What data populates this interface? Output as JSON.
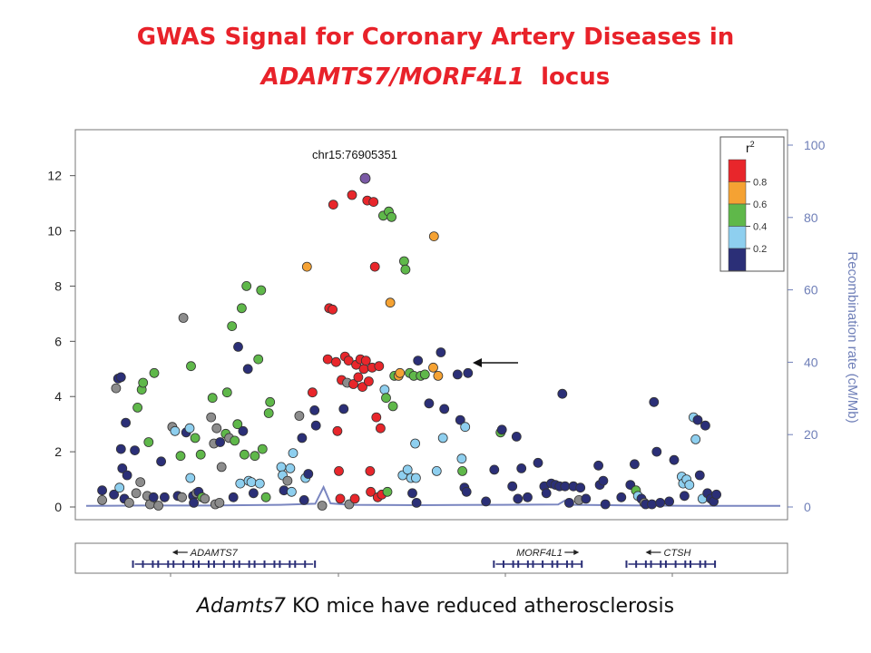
{
  "title": {
    "line1": "GWAS Signal for Coronary Artery Diseases in",
    "line2_italic": "ADAMTS7/MORF4L1",
    "line2_rest": "locus"
  },
  "caption": {
    "italic": "Adamts7",
    "rest": "KO mice have reduced atherosclerosis"
  },
  "chart_data": {
    "type": "scatter",
    "annotation": "chr15:76905351",
    "x_range": [
      0,
      1000
    ],
    "ylim": [
      0,
      13.5
    ],
    "y_ticks": [
      0,
      2,
      4,
      6,
      8,
      10,
      12
    ],
    "y2_label": "Recombination rate (cM/Mb)",
    "y2_range": [
      0,
      100
    ],
    "y2_ticks": [
      0,
      20,
      40,
      60,
      80,
      100
    ],
    "legend": {
      "title": "r",
      "title_sup": "2",
      "placement": "top-right",
      "bins": [
        {
          "color": "#e8262b",
          "label": "0.8"
        },
        {
          "color": "#f5a233",
          "label": "0.6"
        },
        {
          "color": "#5fb84a",
          "label": "0.4"
        },
        {
          "color": "#8ecfef",
          "label": "0.2"
        },
        {
          "color": "#2b2f77",
          "label": ""
        }
      ]
    },
    "colors": {
      "red": "#e8262b",
      "orange": "#f5a233",
      "green": "#5fb84a",
      "light_blue": "#8ecfef",
      "navy": "#2b2f77",
      "grey": "#8c8c8c",
      "purple": "#7b5aa6",
      "recombination_line": "#7a86c0",
      "axis_right": "#6f7fb8"
    },
    "lead_snp": {
      "x": 402,
      "y": 11.9,
      "color": "purple"
    },
    "points": [
      {
        "x": 23,
        "y": 0.6,
        "c": "navy"
      },
      {
        "x": 23,
        "y": 0.25,
        "c": "grey"
      },
      {
        "x": 40,
        "y": 0.45,
        "c": "navy"
      },
      {
        "x": 43,
        "y": 4.3,
        "c": "grey"
      },
      {
        "x": 46,
        "y": 4.65,
        "c": "navy"
      },
      {
        "x": 50,
        "y": 4.7,
        "c": "navy"
      },
      {
        "x": 48,
        "y": 0.7,
        "c": "light_blue"
      },
      {
        "x": 50,
        "y": 2.1,
        "c": "navy"
      },
      {
        "x": 52,
        "y": 1.4,
        "c": "navy"
      },
      {
        "x": 55,
        "y": 0.3,
        "c": "navy"
      },
      {
        "x": 57,
        "y": 3.05,
        "c": "navy"
      },
      {
        "x": 59,
        "y": 1.15,
        "c": "navy"
      },
      {
        "x": 62,
        "y": 0.15,
        "c": "grey"
      },
      {
        "x": 70,
        "y": 2.05,
        "c": "navy"
      },
      {
        "x": 72,
        "y": 0.5,
        "c": "grey"
      },
      {
        "x": 74,
        "y": 3.6,
        "c": "green"
      },
      {
        "x": 78,
        "y": 0.9,
        "c": "grey"
      },
      {
        "x": 80,
        "y": 4.25,
        "c": "green"
      },
      {
        "x": 82,
        "y": 4.5,
        "c": "green"
      },
      {
        "x": 88,
        "y": 0.4,
        "c": "grey"
      },
      {
        "x": 90,
        "y": 2.35,
        "c": "green"
      },
      {
        "x": 92,
        "y": 0.1,
        "c": "grey"
      },
      {
        "x": 97,
        "y": 0.35,
        "c": "navy"
      },
      {
        "x": 98,
        "y": 4.85,
        "c": "green"
      },
      {
        "x": 104,
        "y": 0.05,
        "c": "grey"
      },
      {
        "x": 108,
        "y": 1.65,
        "c": "navy"
      },
      {
        "x": 113,
        "y": 0.35,
        "c": "navy"
      },
      {
        "x": 124,
        "y": 2.9,
        "c": "grey"
      },
      {
        "x": 128,
        "y": 2.75,
        "c": "light_blue"
      },
      {
        "x": 132,
        "y": 0.4,
        "c": "navy"
      },
      {
        "x": 136,
        "y": 1.85,
        "c": "green"
      },
      {
        "x": 138,
        "y": 0.35,
        "c": "grey"
      },
      {
        "x": 140,
        "y": 6.85,
        "c": "grey"
      },
      {
        "x": 144,
        "y": 2.7,
        "c": "navy"
      },
      {
        "x": 149,
        "y": 2.85,
        "c": "light_blue"
      },
      {
        "x": 150,
        "y": 1.05,
        "c": "light_blue"
      },
      {
        "x": 151,
        "y": 5.1,
        "c": "green"
      },
      {
        "x": 154,
        "y": 0.4,
        "c": "navy"
      },
      {
        "x": 155,
        "y": 0.15,
        "c": "navy"
      },
      {
        "x": 157,
        "y": 2.5,
        "c": "green"
      },
      {
        "x": 159,
        "y": 0.5,
        "c": "grey"
      },
      {
        "x": 162,
        "y": 0.55,
        "c": "navy"
      },
      {
        "x": 165,
        "y": 1.9,
        "c": "green"
      },
      {
        "x": 167,
        "y": 0.35,
        "c": "green"
      },
      {
        "x": 171,
        "y": 0.3,
        "c": "grey"
      },
      {
        "x": 180,
        "y": 3.25,
        "c": "grey"
      },
      {
        "x": 182,
        "y": 3.95,
        "c": "green"
      },
      {
        "x": 184,
        "y": 2.3,
        "c": "grey"
      },
      {
        "x": 186,
        "y": 0.1,
        "c": "grey"
      },
      {
        "x": 188,
        "y": 2.85,
        "c": "grey"
      },
      {
        "x": 192,
        "y": 0.15,
        "c": "grey"
      },
      {
        "x": 193,
        "y": 2.35,
        "c": "navy"
      },
      {
        "x": 195,
        "y": 1.45,
        "c": "grey"
      },
      {
        "x": 201,
        "y": 2.65,
        "c": "green"
      },
      {
        "x": 203,
        "y": 4.15,
        "c": "green"
      },
      {
        "x": 206,
        "y": 2.5,
        "c": "grey"
      },
      {
        "x": 210,
        "y": 6.55,
        "c": "green"
      },
      {
        "x": 212,
        "y": 0.35,
        "c": "navy"
      },
      {
        "x": 214,
        "y": 2.4,
        "c": "green"
      },
      {
        "x": 218,
        "y": 3.0,
        "c": "green"
      },
      {
        "x": 219,
        "y": 5.8,
        "c": "navy"
      },
      {
        "x": 222,
        "y": 0.85,
        "c": "light_blue"
      },
      {
        "x": 224,
        "y": 7.2,
        "c": "green"
      },
      {
        "x": 226,
        "y": 2.75,
        "c": "navy"
      },
      {
        "x": 228,
        "y": 1.9,
        "c": "green"
      },
      {
        "x": 231,
        "y": 8.0,
        "c": "green"
      },
      {
        "x": 233,
        "y": 5.0,
        "c": "navy"
      },
      {
        "x": 234,
        "y": 0.95,
        "c": "light_blue"
      },
      {
        "x": 238,
        "y": 0.9,
        "c": "light_blue"
      },
      {
        "x": 241,
        "y": 0.5,
        "c": "navy"
      },
      {
        "x": 243,
        "y": 1.85,
        "c": "green"
      },
      {
        "x": 248,
        "y": 5.35,
        "c": "green"
      },
      {
        "x": 250,
        "y": 0.85,
        "c": "light_blue"
      },
      {
        "x": 252,
        "y": 7.85,
        "c": "green"
      },
      {
        "x": 254,
        "y": 2.1,
        "c": "green"
      },
      {
        "x": 259,
        "y": 0.35,
        "c": "green"
      },
      {
        "x": 263,
        "y": 3.4,
        "c": "green"
      },
      {
        "x": 265,
        "y": 3.8,
        "c": "green"
      },
      {
        "x": 281,
        "y": 1.45,
        "c": "light_blue"
      },
      {
        "x": 283,
        "y": 1.15,
        "c": "light_blue"
      },
      {
        "x": 285,
        "y": 0.6,
        "c": "navy"
      },
      {
        "x": 290,
        "y": 0.95,
        "c": "grey"
      },
      {
        "x": 294,
        "y": 1.4,
        "c": "light_blue"
      },
      {
        "x": 296,
        "y": 0.55,
        "c": "light_blue"
      },
      {
        "x": 298,
        "y": 1.95,
        "c": "light_blue"
      },
      {
        "x": 307,
        "y": 3.3,
        "c": "grey"
      },
      {
        "x": 311,
        "y": 2.5,
        "c": "navy"
      },
      {
        "x": 314,
        "y": 0.25,
        "c": "navy"
      },
      {
        "x": 316,
        "y": 1.05,
        "c": "light_blue"
      },
      {
        "x": 318,
        "y": 8.7,
        "c": "orange"
      },
      {
        "x": 320,
        "y": 1.2,
        "c": "navy"
      },
      {
        "x": 326,
        "y": 4.15,
        "c": "red"
      },
      {
        "x": 329,
        "y": 3.5,
        "c": "navy"
      },
      {
        "x": 331,
        "y": 2.95,
        "c": "navy"
      },
      {
        "x": 340,
        "y": 0.05,
        "c": "grey"
      },
      {
        "x": 348,
        "y": 5.35,
        "c": "red"
      },
      {
        "x": 350,
        "y": 7.2,
        "c": "red"
      },
      {
        "x": 355,
        "y": 7.15,
        "c": "red"
      },
      {
        "x": 356,
        "y": 10.95,
        "c": "red"
      },
      {
        "x": 360,
        "y": 5.25,
        "c": "red"
      },
      {
        "x": 362,
        "y": 2.75,
        "c": "red"
      },
      {
        "x": 364,
        "y": 1.3,
        "c": "red"
      },
      {
        "x": 366,
        "y": 0.3,
        "c": "red"
      },
      {
        "x": 368,
        "y": 4.6,
        "c": "red"
      },
      {
        "x": 371,
        "y": 3.55,
        "c": "navy"
      },
      {
        "x": 373,
        "y": 5.45,
        "c": "red"
      },
      {
        "x": 376,
        "y": 4.5,
        "c": "grey"
      },
      {
        "x": 378,
        "y": 5.3,
        "c": "red"
      },
      {
        "x": 379,
        "y": 0.1,
        "c": "grey"
      },
      {
        "x": 383,
        "y": 11.3,
        "c": "red"
      },
      {
        "x": 385,
        "y": 4.45,
        "c": "red"
      },
      {
        "x": 387,
        "y": 0.3,
        "c": "red"
      },
      {
        "x": 389,
        "y": 5.15,
        "c": "red"
      },
      {
        "x": 392,
        "y": 4.7,
        "c": "red"
      },
      {
        "x": 395,
        "y": 5.35,
        "c": "red"
      },
      {
        "x": 398,
        "y": 4.35,
        "c": "red"
      },
      {
        "x": 400,
        "y": 5.0,
        "c": "red"
      },
      {
        "x": 403,
        "y": 5.3,
        "c": "red"
      },
      {
        "x": 405,
        "y": 11.1,
        "c": "red"
      },
      {
        "x": 407,
        "y": 4.55,
        "c": "red"
      },
      {
        "x": 409,
        "y": 1.3,
        "c": "red"
      },
      {
        "x": 410,
        "y": 0.55,
        "c": "red"
      },
      {
        "x": 412,
        "y": 5.05,
        "c": "red"
      },
      {
        "x": 414,
        "y": 11.05,
        "c": "red"
      },
      {
        "x": 416,
        "y": 8.7,
        "c": "red"
      },
      {
        "x": 418,
        "y": 3.25,
        "c": "red"
      },
      {
        "x": 420,
        "y": 0.35,
        "c": "red"
      },
      {
        "x": 422,
        "y": 5.1,
        "c": "red"
      },
      {
        "x": 424,
        "y": 2.85,
        "c": "red"
      },
      {
        "x": 426,
        "y": 0.45,
        "c": "red"
      },
      {
        "x": 428,
        "y": 10.55,
        "c": "green"
      },
      {
        "x": 430,
        "y": 4.25,
        "c": "light_blue"
      },
      {
        "x": 432,
        "y": 3.95,
        "c": "green"
      },
      {
        "x": 434,
        "y": 0.55,
        "c": "green"
      },
      {
        "x": 436,
        "y": 10.7,
        "c": "green"
      },
      {
        "x": 438,
        "y": 7.4,
        "c": "orange"
      },
      {
        "x": 440,
        "y": 10.5,
        "c": "green"
      },
      {
        "x": 442,
        "y": 3.65,
        "c": "green"
      },
      {
        "x": 444,
        "y": 4.75,
        "c": "green"
      },
      {
        "x": 450,
        "y": 4.75,
        "c": "orange"
      },
      {
        "x": 452,
        "y": 4.85,
        "c": "orange"
      },
      {
        "x": 456,
        "y": 1.15,
        "c": "light_blue"
      },
      {
        "x": 458,
        "y": 8.9,
        "c": "green"
      },
      {
        "x": 460,
        "y": 8.6,
        "c": "green"
      },
      {
        "x": 463,
        "y": 1.35,
        "c": "light_blue"
      },
      {
        "x": 466,
        "y": 4.85,
        "c": "green"
      },
      {
        "x": 468,
        "y": 1.05,
        "c": "light_blue"
      },
      {
        "x": 470,
        "y": 0.5,
        "c": "navy"
      },
      {
        "x": 472,
        "y": 4.75,
        "c": "green"
      },
      {
        "x": 474,
        "y": 2.3,
        "c": "light_blue"
      },
      {
        "x": 475,
        "y": 1.05,
        "c": "light_blue"
      },
      {
        "x": 476,
        "y": 0.15,
        "c": "navy"
      },
      {
        "x": 478,
        "y": 5.3,
        "c": "navy"
      },
      {
        "x": 482,
        "y": 4.75,
        "c": "green"
      },
      {
        "x": 488,
        "y": 4.8,
        "c": "green"
      },
      {
        "x": 494,
        "y": 3.75,
        "c": "navy"
      },
      {
        "x": 500,
        "y": 5.05,
        "c": "orange"
      },
      {
        "x": 501,
        "y": 9.8,
        "c": "orange"
      },
      {
        "x": 505,
        "y": 1.3,
        "c": "light_blue"
      },
      {
        "x": 507,
        "y": 4.75,
        "c": "orange"
      },
      {
        "x": 511,
        "y": 5.6,
        "c": "navy"
      },
      {
        "x": 514,
        "y": 2.5,
        "c": "light_blue"
      },
      {
        "x": 516,
        "y": 3.55,
        "c": "navy"
      },
      {
        "x": 535,
        "y": 4.8,
        "c": "navy"
      },
      {
        "x": 539,
        "y": 3.15,
        "c": "navy"
      },
      {
        "x": 541,
        "y": 1.75,
        "c": "light_blue"
      },
      {
        "x": 542,
        "y": 1.3,
        "c": "green"
      },
      {
        "x": 545,
        "y": 0.7,
        "c": "navy"
      },
      {
        "x": 546,
        "y": 2.9,
        "c": "light_blue"
      },
      {
        "x": 548,
        "y": 0.55,
        "c": "navy"
      },
      {
        "x": 550,
        "y": 4.85,
        "c": "navy"
      },
      {
        "x": 576,
        "y": 0.2,
        "c": "navy"
      },
      {
        "x": 588,
        "y": 1.35,
        "c": "navy"
      },
      {
        "x": 597,
        "y": 2.7,
        "c": "green"
      },
      {
        "x": 599,
        "y": 2.8,
        "c": "navy"
      },
      {
        "x": 614,
        "y": 0.75,
        "c": "navy"
      },
      {
        "x": 620,
        "y": 2.55,
        "c": "navy"
      },
      {
        "x": 622,
        "y": 0.3,
        "c": "navy"
      },
      {
        "x": 627,
        "y": 1.4,
        "c": "navy"
      },
      {
        "x": 636,
        "y": 0.35,
        "c": "navy"
      },
      {
        "x": 651,
        "y": 1.6,
        "c": "navy"
      },
      {
        "x": 660,
        "y": 0.75,
        "c": "navy"
      },
      {
        "x": 663,
        "y": 0.5,
        "c": "navy"
      },
      {
        "x": 670,
        "y": 0.85,
        "c": "navy"
      },
      {
        "x": 676,
        "y": 0.8,
        "c": "navy"
      },
      {
        "x": 682,
        "y": 0.75,
        "c": "navy"
      },
      {
        "x": 686,
        "y": 4.1,
        "c": "navy"
      },
      {
        "x": 690,
        "y": 0.75,
        "c": "navy"
      },
      {
        "x": 696,
        "y": 0.15,
        "c": "navy"
      },
      {
        "x": 702,
        "y": 0.75,
        "c": "navy"
      },
      {
        "x": 710,
        "y": 0.25,
        "c": "grey"
      },
      {
        "x": 712,
        "y": 0.7,
        "c": "navy"
      },
      {
        "x": 720,
        "y": 0.3,
        "c": "navy"
      },
      {
        "x": 738,
        "y": 1.5,
        "c": "navy"
      },
      {
        "x": 740,
        "y": 0.8,
        "c": "navy"
      },
      {
        "x": 745,
        "y": 0.95,
        "c": "navy"
      },
      {
        "x": 748,
        "y": 0.1,
        "c": "navy"
      },
      {
        "x": 771,
        "y": 0.35,
        "c": "navy"
      },
      {
        "x": 784,
        "y": 0.8,
        "c": "navy"
      },
      {
        "x": 790,
        "y": 1.55,
        "c": "navy"
      },
      {
        "x": 792,
        "y": 0.6,
        "c": "green"
      },
      {
        "x": 795,
        "y": 0.4,
        "c": "light_blue"
      },
      {
        "x": 800,
        "y": 0.3,
        "c": "navy"
      },
      {
        "x": 804,
        "y": 0.15,
        "c": "grey"
      },
      {
        "x": 806,
        "y": 0.1,
        "c": "navy"
      },
      {
        "x": 815,
        "y": 0.1,
        "c": "navy"
      },
      {
        "x": 818,
        "y": 3.8,
        "c": "navy"
      },
      {
        "x": 822,
        "y": 2.0,
        "c": "navy"
      },
      {
        "x": 827,
        "y": 0.15,
        "c": "navy"
      },
      {
        "x": 840,
        "y": 0.2,
        "c": "navy"
      },
      {
        "x": 847,
        "y": 1.7,
        "c": "navy"
      },
      {
        "x": 858,
        "y": 1.1,
        "c": "light_blue"
      },
      {
        "x": 860,
        "y": 0.85,
        "c": "light_blue"
      },
      {
        "x": 862,
        "y": 0.4,
        "c": "navy"
      },
      {
        "x": 865,
        "y": 1.0,
        "c": "light_blue"
      },
      {
        "x": 869,
        "y": 0.8,
        "c": "light_blue"
      },
      {
        "x": 875,
        "y": 3.25,
        "c": "light_blue"
      },
      {
        "x": 878,
        "y": 2.45,
        "c": "light_blue"
      },
      {
        "x": 881,
        "y": 3.15,
        "c": "navy"
      },
      {
        "x": 884,
        "y": 1.15,
        "c": "navy"
      },
      {
        "x": 888,
        "y": 0.3,
        "c": "light_blue"
      },
      {
        "x": 892,
        "y": 2.95,
        "c": "navy"
      },
      {
        "x": 895,
        "y": 0.5,
        "c": "navy"
      },
      {
        "x": 900,
        "y": 0.3,
        "c": "navy"
      },
      {
        "x": 904,
        "y": 0.2,
        "c": "navy"
      },
      {
        "x": 908,
        "y": 0.45,
        "c": "navy"
      }
    ],
    "recombination": [
      [
        0,
        0.3
      ],
      [
        80,
        0.4
      ],
      [
        180,
        0.4
      ],
      [
        280,
        0.6
      ],
      [
        330,
        0.9
      ],
      [
        342,
        5.5
      ],
      [
        352,
        1.0
      ],
      [
        380,
        0.6
      ],
      [
        480,
        0.5
      ],
      [
        600,
        0.6
      ],
      [
        680,
        0.7
      ],
      [
        690,
        1.8
      ],
      [
        700,
        0.6
      ],
      [
        800,
        0.4
      ],
      [
        900,
        0.3
      ],
      [
        1000,
        0.3
      ]
    ],
    "genes": [
      {
        "name": "ADAMTS7",
        "direction": "left",
        "start": 70,
        "end": 327
      },
      {
        "name": "MORF4L1",
        "direction": "right",
        "start": 590,
        "end": 714
      },
      {
        "name": "CTSH",
        "direction": "left",
        "start": 781,
        "end": 906
      }
    ]
  }
}
